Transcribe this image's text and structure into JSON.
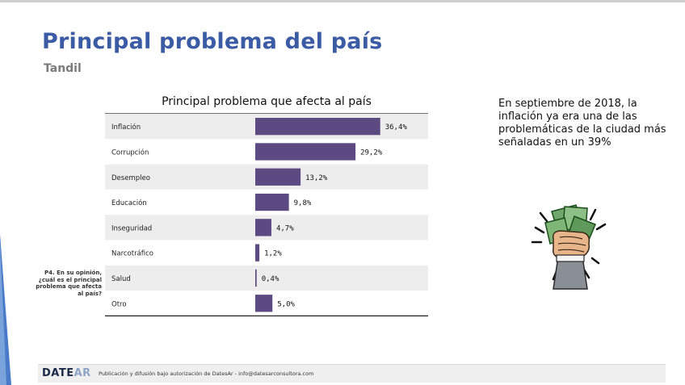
{
  "page": {
    "title": "Principal problema del país",
    "subtitle": "Tandil",
    "question": "P4. En su opinión, ¿cuál es el principal problema que afecta al país?",
    "annotation": "En septiembre de 2018, la inflación ya era una de las problemáticas de la ciudad más señaladas en un 39%",
    "footer": {
      "logo_main": "DATE",
      "logo_accent": "AR",
      "text": "Publicación y difusión bajo autorización de DatesAr - info@datesarconsultora.com"
    },
    "colors": {
      "title": "#3b5ba5",
      "bar": "#5e4a82",
      "accent_stripe": "#4a7bc8"
    }
  },
  "chart_data": {
    "type": "bar",
    "orientation": "horizontal",
    "title": "Principal problema que afecta al país",
    "categories": [
      "Inflación",
      "Corrupción",
      "Desempleo",
      "Educación",
      "Inseguridad",
      "Narcotráfico",
      "Salud",
      "Otro"
    ],
    "values": [
      36.4,
      29.2,
      13.2,
      9.8,
      4.7,
      1.2,
      0.4,
      5.0
    ],
    "value_labels": [
      "36,4%",
      "29,2%",
      "13,2%",
      "9,8%",
      "4,7%",
      "1,2%",
      "0,4%",
      "5,0%"
    ],
    "unit": "%",
    "xlim": [
      0,
      40
    ],
    "grid": false
  }
}
